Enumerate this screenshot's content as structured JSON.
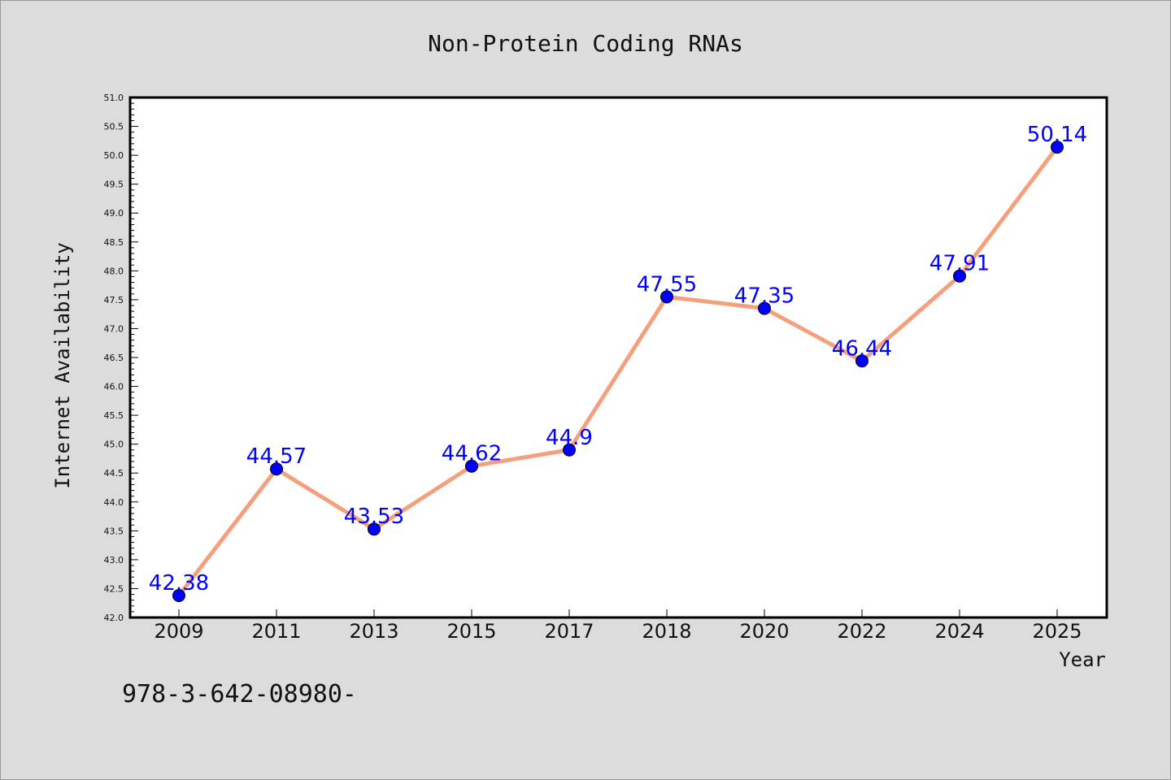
{
  "chart_data": {
    "type": "line",
    "title": "Non-Protein Coding RNAs",
    "xlabel": "Year",
    "ylabel": "Internet Availability",
    "categories": [
      "2009",
      "2011",
      "2013",
      "2015",
      "2017",
      "2018",
      "2020",
      "2022",
      "2024",
      "2025"
    ],
    "series": [
      {
        "values": [
          42.38,
          44.57,
          43.53,
          44.62,
          44.9,
          47.55,
          47.35,
          46.44,
          47.91,
          50.14
        ],
        "labels": [
          "42.38",
          "44.57",
          "43.53",
          "44.62",
          "44.9",
          "47.55",
          "47.35",
          "46.44",
          "47.91",
          "50.14"
        ],
        "line_color": "#f4a07e",
        "marker_color": "#0000ff",
        "label_color": "#0000ff"
      }
    ],
    "ylim": [
      42.0,
      51.0
    ],
    "yticks": [
      "42.0",
      "42.5",
      "43.0",
      "43.5",
      "44.0",
      "44.5",
      "45.0",
      "45.5",
      "46.0",
      "46.5",
      "47.0",
      "47.5",
      "48.0",
      "48.5",
      "49.0",
      "49.5",
      "50.0",
      "50.5",
      "51.0"
    ],
    "grid": false,
    "legend": "none"
  },
  "footnote": "978-3-642-08980-"
}
